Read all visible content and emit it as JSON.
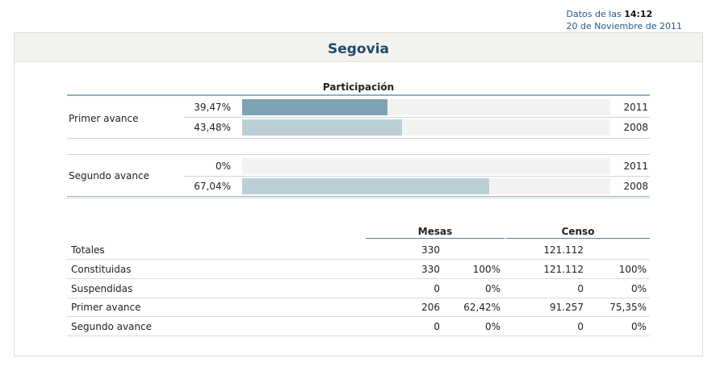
{
  "header": {
    "datos_prefix": "Datos de las",
    "time": "14:12",
    "date": "20 de Noviembre de 2011"
  },
  "panel": {
    "title": "Segovia"
  },
  "participacion": {
    "title": "Participación",
    "bar_colors": {
      "current": "#7fa3b3",
      "previous": "#bccfd6"
    },
    "groups": [
      {
        "label": "Primer avance",
        "rows": [
          {
            "pct": "39,47%",
            "value": 39.47,
            "year": "2011"
          },
          {
            "pct": "43,48%",
            "value": 43.48,
            "year": "2008"
          }
        ]
      },
      {
        "label": "Segundo avance",
        "rows": [
          {
            "pct": "0%",
            "value": 0,
            "year": "2011"
          },
          {
            "pct": "67,04%",
            "value": 67.04,
            "year": "2008"
          }
        ]
      }
    ]
  },
  "stats": {
    "headers": {
      "mesas": "Mesas",
      "censo": "Censo"
    },
    "rows": [
      {
        "label": "Totales",
        "mesas": "330",
        "mesas_pct": "",
        "censo": "121.112",
        "censo_pct": ""
      },
      {
        "label": "Constituidas",
        "mesas": "330",
        "mesas_pct": "100%",
        "censo": "121.112",
        "censo_pct": "100%"
      },
      {
        "label": "Suspendidas",
        "mesas": "0",
        "mesas_pct": "0%",
        "censo": "0",
        "censo_pct": "0%"
      },
      {
        "label": "Primer avance",
        "mesas": "206",
        "mesas_pct": "62,42%",
        "censo": "91.257",
        "censo_pct": "75,35%"
      },
      {
        "label": "Segundo avance",
        "mesas": "0",
        "mesas_pct": "0%",
        "censo": "0",
        "censo_pct": "0%"
      }
    ]
  }
}
